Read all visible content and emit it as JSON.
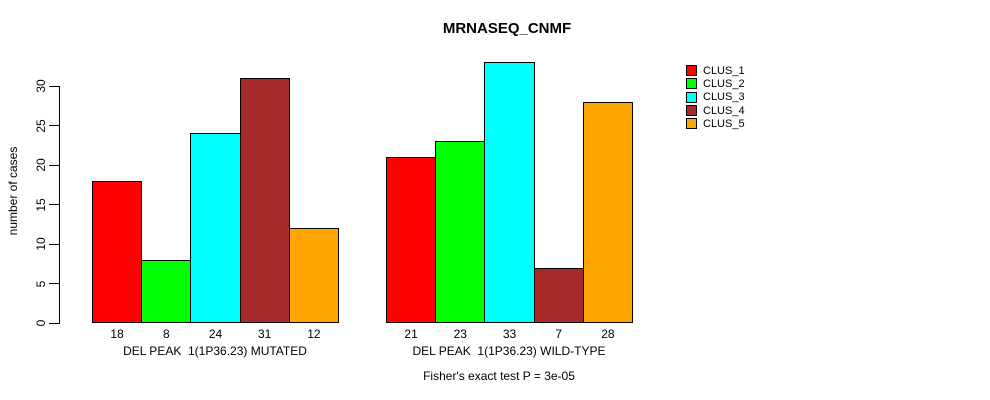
{
  "title": "MRNASEQ_CNMF",
  "chart_data": {
    "type": "bar",
    "title": "MRNASEQ_CNMF",
    "ylabel": "number of cases",
    "xlabel": "",
    "footnote": "Fisher's exact test P = 3e-05",
    "yticks": [
      0,
      5,
      10,
      15,
      20,
      25,
      30
    ],
    "ylim": [
      0,
      33.5
    ],
    "grid": false,
    "legend_position": "top-right",
    "bar_value_labels": true,
    "categories": [
      "DEL PEAK  1(1P36.23) MUTATED",
      "DEL PEAK  1(1P36.23) WILD-TYPE"
    ],
    "series": [
      {
        "name": "CLUS_1",
        "color": "#FF0000",
        "values": [
          18,
          21
        ]
      },
      {
        "name": "CLUS_2",
        "color": "#00FF00",
        "values": [
          8,
          23
        ]
      },
      {
        "name": "CLUS_3",
        "color": "#00FFFF",
        "values": [
          24,
          33
        ]
      },
      {
        "name": "CLUS_4",
        "color": "#A52A2A",
        "values": [
          31,
          7
        ]
      },
      {
        "name": "CLUS_5",
        "color": "#FFA500",
        "values": [
          12,
          28
        ]
      }
    ],
    "colors": {
      "background": "#FFFFFF",
      "axis": "#000000",
      "bar_border": "#000000",
      "text": "#000000"
    }
  }
}
